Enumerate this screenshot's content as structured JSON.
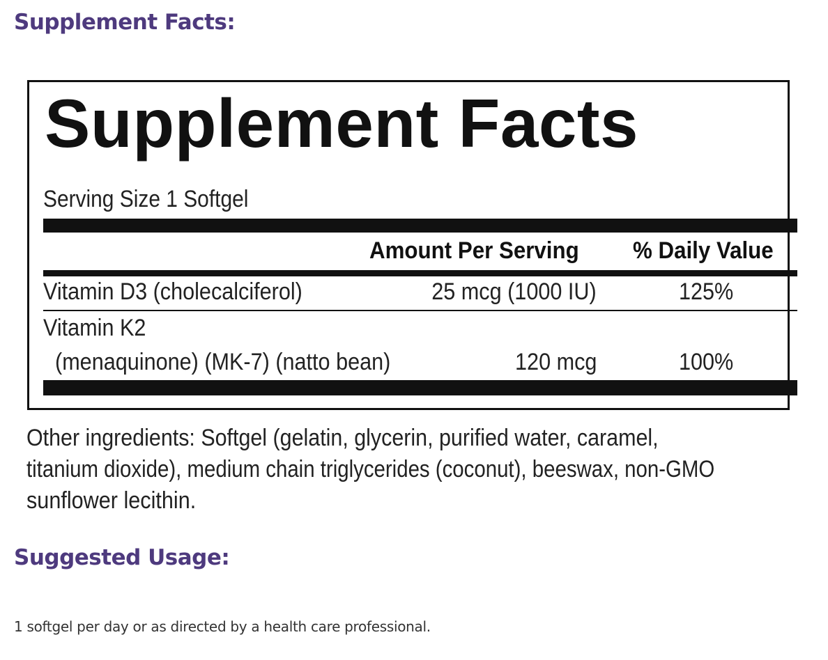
{
  "headings": {
    "facts": "Supplement Facts:",
    "usage": "Suggested Usage:"
  },
  "panel": {
    "title": "Supplement Facts",
    "serving_size": "Serving Size 1 Softgel",
    "columns": {
      "amount": "Amount Per Serving",
      "daily_value": "% Daily Value"
    },
    "rows": [
      {
        "name_lines": [
          "Vitamin D3 (cholecalciferol)"
        ],
        "amount": "25 mcg (1000 IU)",
        "daily_value": "125%"
      },
      {
        "name_lines": [
          "Vitamin K2",
          "(menaquinone) (MK-7) (natto bean)"
        ],
        "amount": "120 mcg",
        "daily_value": "100%"
      }
    ]
  },
  "other_ingredients": {
    "lines": [
      "Other ingredients: Softgel (gelatin, glycerin, purified water, caramel,",
      "titanium dioxide), medium chain triglycerides (coconut), beeswax, non-GMO",
      "sunflower lecithin."
    ]
  },
  "usage": {
    "text": "1 softgel per day or as directed by a health care professional."
  },
  "colors": {
    "heading": "#4e3a7e",
    "rule": "#111111",
    "body_text": "#222222"
  }
}
